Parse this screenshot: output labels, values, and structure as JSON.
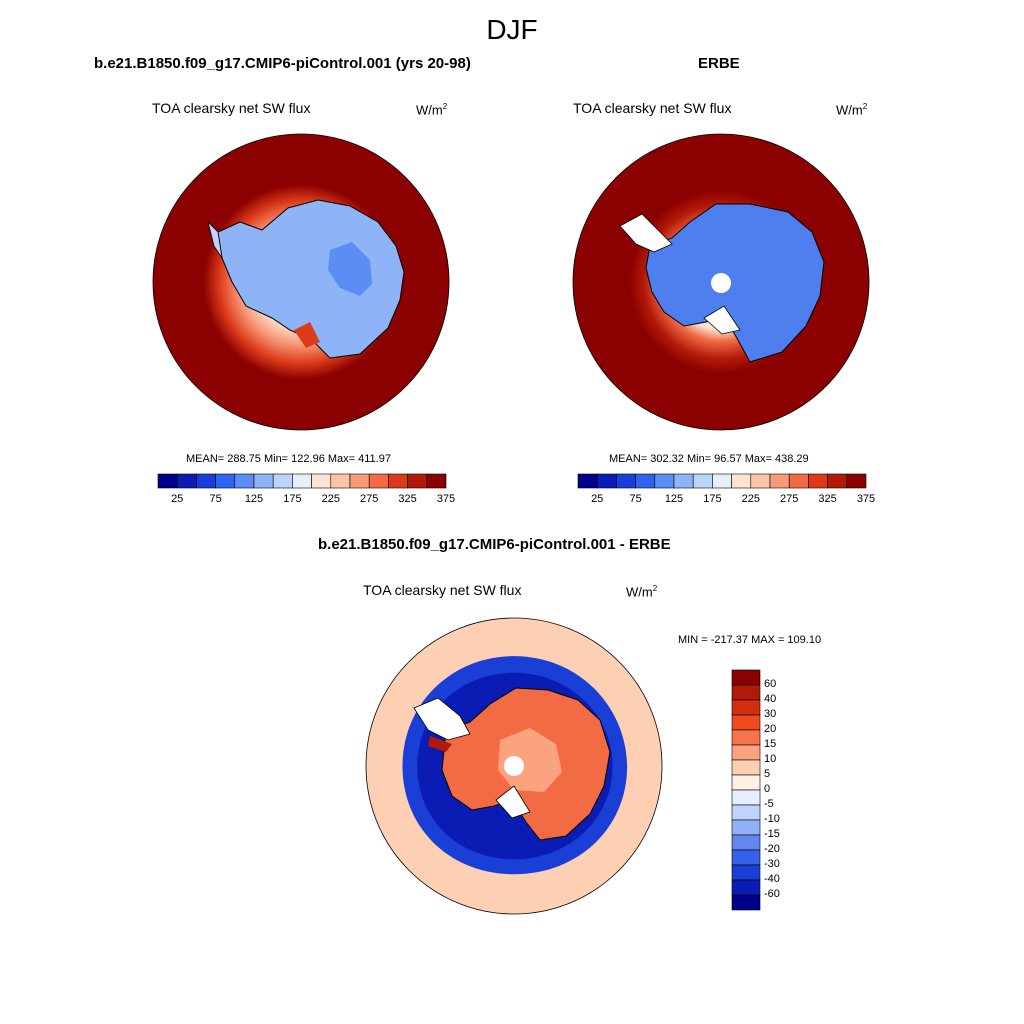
{
  "figure_title": "DJF",
  "panels": [
    {
      "title": "b.e21.B1850.f09_g17.CMIP6-piControl.001 (yrs 20-98)",
      "variable": "TOA clearsky net SW flux",
      "units": "W/m",
      "units_exp": "2",
      "stats": "MEAN= 288.75  Min= 122.96  Max= 411.97",
      "colorbar_ticks": [
        "25",
        "75",
        "125",
        "175",
        "225",
        "275",
        "325",
        "375"
      ]
    },
    {
      "title": "ERBE",
      "variable": "TOA clearsky net SW flux",
      "units": "W/m",
      "units_exp": "2",
      "stats": "MEAN= 302.32  Min=  96.57  Max= 438.29",
      "colorbar_ticks": [
        "25",
        "75",
        "125",
        "175",
        "225",
        "275",
        "325",
        "375"
      ]
    },
    {
      "title": "b.e21.B1850.f09_g17.CMIP6-piControl.001 - ERBE",
      "variable": "TOA clearsky net SW flux",
      "units": "W/m",
      "units_exp": "2",
      "stats": "MIN = -217.37 MAX = 109.10",
      "colorbar_ticks": [
        "60",
        "40",
        "30",
        "20",
        "15",
        "10",
        "5",
        "0",
        "-5",
        "-10",
        "-15",
        "-20",
        "-30",
        "-40",
        "-60"
      ]
    }
  ],
  "colors": {
    "abs_scale": [
      "#00008b",
      "#0a1cb4",
      "#1a3fd6",
      "#2e62f0",
      "#5c8df5",
      "#8fb3f7",
      "#bcd4f8",
      "#e4f0fc",
      "#fde4d2",
      "#fbc4a8",
      "#f89a78",
      "#f26b45",
      "#dc3b1a",
      "#b21a08",
      "#8b0000"
    ],
    "diff_scale": [
      "#8b0000",
      "#b21a08",
      "#d42e10",
      "#f04a20",
      "#f7744a",
      "#fba27e",
      "#fdd0b4",
      "#fdf0e6",
      "#e6efff",
      "#bfd3fb",
      "#93b1f6",
      "#6387f0",
      "#3560ea",
      "#1a3fd6",
      "#0a1cb4",
      "#00008b"
    ]
  }
}
